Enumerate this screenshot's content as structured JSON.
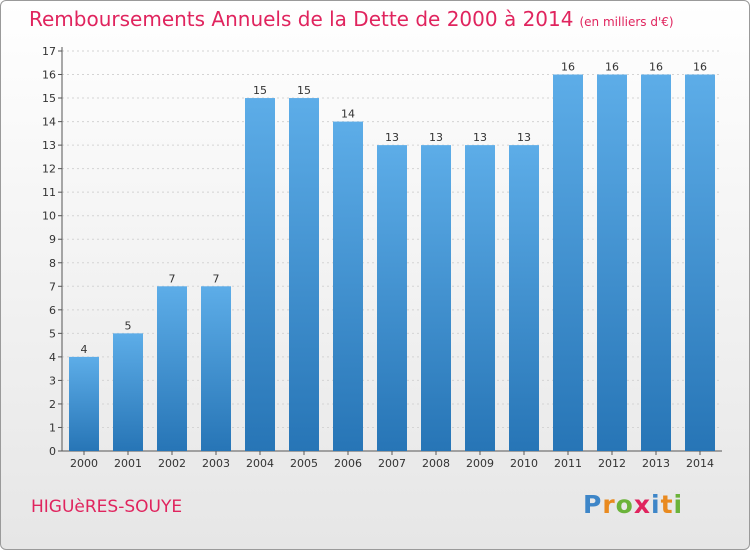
{
  "chart_data": {
    "type": "bar",
    "title": "Remboursements Annuels de la Dette de 2000 à 2014",
    "subtitle": "(en milliers d'€)",
    "categories": [
      "2000",
      "2001",
      "2002",
      "2003",
      "2004",
      "2005",
      "2006",
      "2007",
      "2008",
      "2009",
      "2010",
      "2011",
      "2012",
      "2013",
      "2014"
    ],
    "values": [
      4,
      5,
      7,
      7,
      15,
      15,
      14,
      13,
      13,
      13,
      13,
      16,
      16,
      16,
      16
    ],
    "ylim": [
      0,
      17
    ],
    "yticks": [
      0,
      1,
      2,
      3,
      4,
      5,
      6,
      7,
      8,
      9,
      10,
      11,
      12,
      13,
      14,
      15,
      16,
      17
    ],
    "grid": true,
    "colors": {
      "bar_light": "#5dade8",
      "bar_dark": "#2775b6",
      "title": "#e0245e"
    }
  },
  "location": "HIGUèRES-SOUYE",
  "logo": {
    "text": "Proxiti"
  }
}
